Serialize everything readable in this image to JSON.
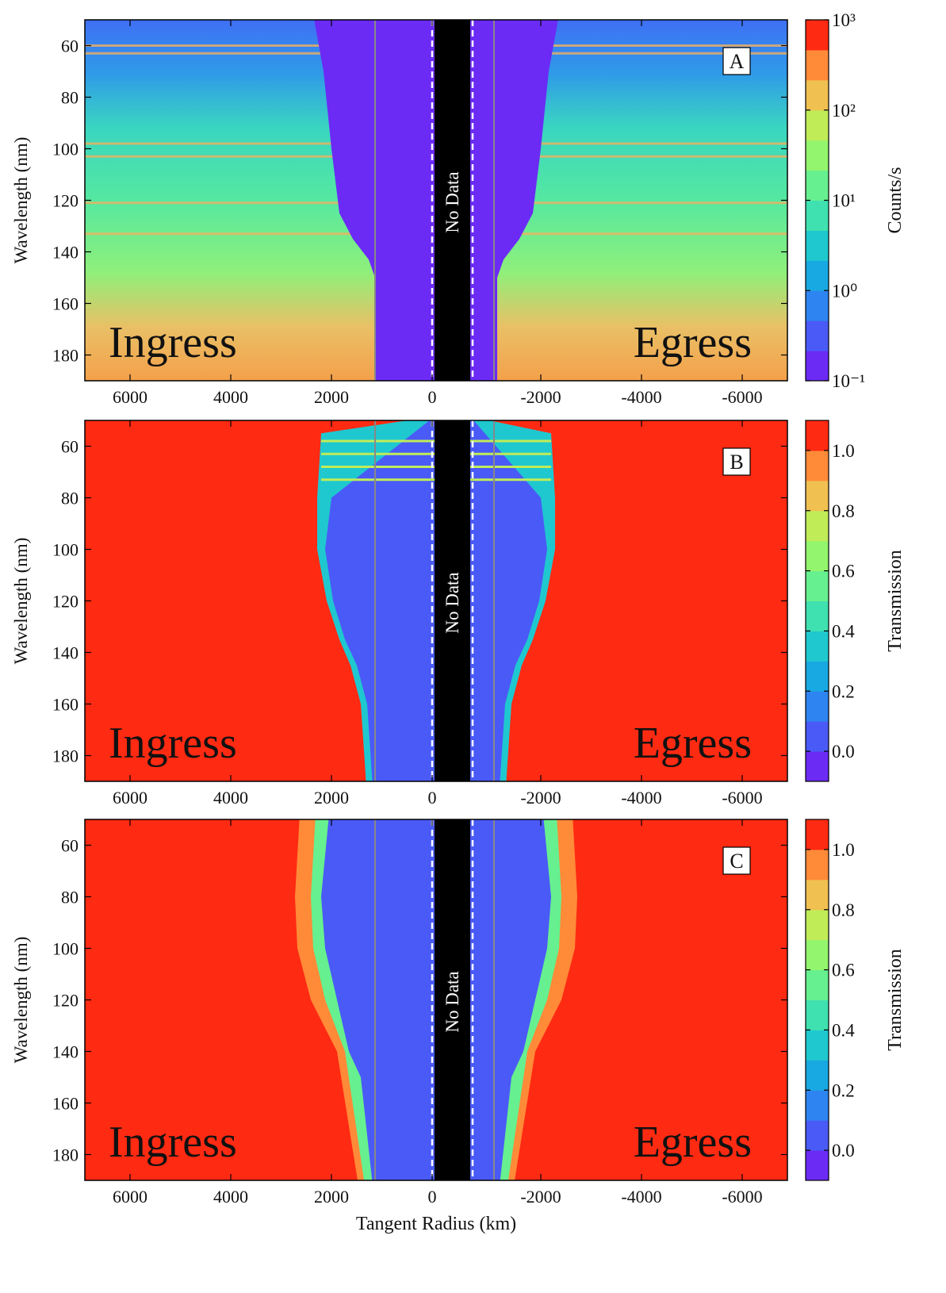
{
  "chart_data": [
    {
      "type": "heatmap",
      "panel_label": "A",
      "ylabel": "Wavelength (nm)",
      "xlim": [
        6900,
        -6900
      ],
      "xticks": [
        6000,
        4000,
        2000,
        0,
        -2000,
        -4000,
        -6000
      ],
      "ylim": [
        50,
        190
      ],
      "y_inverted": true,
      "yticks": [
        60,
        80,
        100,
        120,
        140,
        160,
        180
      ],
      "annotations": [
        "Ingress",
        "Egress",
        "No Data"
      ],
      "colorbar": {
        "label": "Counts/s",
        "scale": "log",
        "lim": [
          0.1,
          1000
        ],
        "ticks": [
          {
            "value": 1000,
            "label": "10³"
          },
          {
            "value": 100,
            "label": "10²"
          },
          {
            "value": 10,
            "label": "10¹"
          },
          {
            "value": 1,
            "label": "10⁰"
          },
          {
            "value": 0.1,
            "label": "10⁻¹"
          }
        ],
        "colors": [
          "#6b2bf5",
          "#4a5af7",
          "#2e84f0",
          "#19a9e2",
          "#1fc8cf",
          "#3fe1b0",
          "#66f08f",
          "#93f56d",
          "#c0ec58",
          "#f0c050",
          "#ff8a38",
          "#ff2a12"
        ]
      }
    },
    {
      "type": "heatmap",
      "panel_label": "B",
      "ylabel": "Wavelength (nm)",
      "xlim": [
        6900,
        -6900
      ],
      "xticks": [
        6000,
        4000,
        2000,
        0,
        -2000,
        -4000,
        -6000
      ],
      "ylim": [
        50,
        190
      ],
      "y_inverted": true,
      "yticks": [
        60,
        80,
        100,
        120,
        140,
        160,
        180
      ],
      "annotations": [
        "Ingress",
        "Egress",
        "No Data"
      ],
      "colorbar": {
        "label": "Transmission",
        "scale": "linear",
        "lim": [
          -0.1,
          1.1
        ],
        "ticks": [
          {
            "value": 0,
            "label": "0.0"
          },
          0.2,
          0.4,
          0.6,
          0.8,
          {
            "value": 1,
            "label": "1.0"
          }
        ],
        "colors": [
          "#6b2bf5",
          "#4a5af7",
          "#2e84f0",
          "#19a9e2",
          "#1fc8cf",
          "#3fe1b0",
          "#66f08f",
          "#93f56d",
          "#c0ec58",
          "#f0c050",
          "#ff8a38",
          "#ff2a12"
        ]
      }
    },
    {
      "type": "heatmap",
      "panel_label": "C",
      "ylabel": "Wavelength (nm)",
      "xlabel": "Tangent Radius (km)",
      "xlim": [
        6900,
        -6900
      ],
      "xticks": [
        6000,
        4000,
        2000,
        0,
        -2000,
        -4000,
        -6000
      ],
      "ylim": [
        50,
        190
      ],
      "y_inverted": true,
      "yticks": [
        60,
        80,
        100,
        120,
        140,
        160,
        180
      ],
      "annotations": [
        "Ingress",
        "Egress",
        "No Data"
      ],
      "colorbar": {
        "label": "Transmission",
        "scale": "linear",
        "lim": [
          -0.1,
          1.1
        ],
        "ticks": [
          {
            "value": 0,
            "label": "0.0"
          },
          0.2,
          0.4,
          0.6,
          0.8,
          {
            "value": 1,
            "label": "1.0"
          }
        ],
        "colors": [
          "#6b2bf5",
          "#4a5af7",
          "#2e84f0",
          "#19a9e2",
          "#1fc8cf",
          "#3fe1b0",
          "#66f08f",
          "#93f56d",
          "#c0ec58",
          "#f0c050",
          "#ff8a38",
          "#ff2a12"
        ]
      }
    }
  ]
}
